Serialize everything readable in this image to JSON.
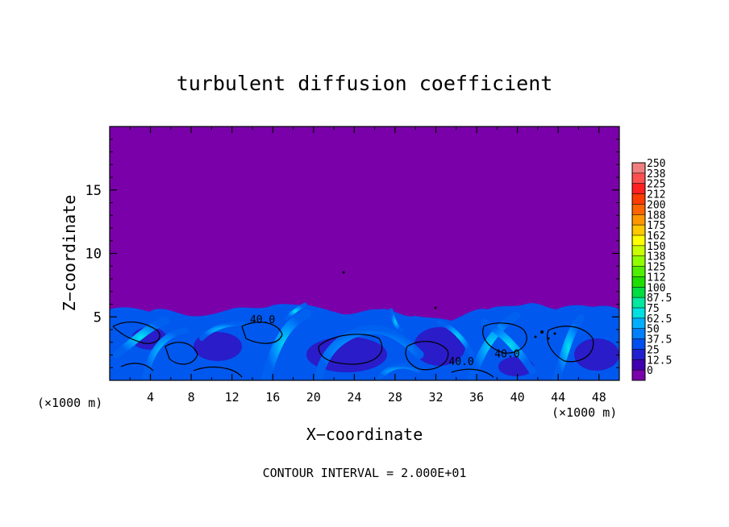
{
  "chart_data": {
    "type": "heatmap",
    "title": "turbulent diffusion coefficient",
    "xlabel": "X−coordinate",
    "ylabel": "Z−coordinate",
    "x_unit_left": "(×1000 m)",
    "x_unit_right": "(×1000 m)",
    "footer": "CONTOUR INTERVAL = 2.000E+01",
    "xlim": [
      0,
      50
    ],
    "ylim": [
      0,
      20
    ],
    "x_ticks": [
      "4",
      "8",
      "12",
      "16",
      "20",
      "24",
      "28",
      "32",
      "36",
      "40",
      "44",
      "48"
    ],
    "x_tick_values": [
      4,
      8,
      12,
      16,
      20,
      24,
      28,
      32,
      36,
      40,
      44,
      48
    ],
    "y_ticks": [
      "5",
      "10",
      "15"
    ],
    "y_tick_values": [
      5,
      10,
      15
    ],
    "contour_labels": [
      {
        "text": "40.0",
        "x": 15.0,
        "z": 4.5
      },
      {
        "text": "40.0",
        "x": 34.5,
        "z": 1.2
      },
      {
        "text": "40.0",
        "x": 39.0,
        "z": 1.8
      }
    ],
    "colorbar": {
      "labels": [
        "250",
        "238",
        "225",
        "212",
        "200",
        "188",
        "175",
        "162",
        "150",
        "138",
        "125",
        "112",
        "100",
        "87.5",
        "75",
        "62.5",
        "50",
        "37.5",
        "25",
        "12.5",
        "0"
      ],
      "values": [
        250,
        237.5,
        225,
        212.5,
        200,
        187.5,
        175,
        162.5,
        150,
        137.5,
        125,
        112.5,
        100,
        87.5,
        75,
        62.5,
        50,
        37.5,
        25,
        12.5,
        0
      ],
      "colors": [
        "#f08080",
        "#ff5050",
        "#ff2020",
        "#ff3c00",
        "#ff6400",
        "#ff9600",
        "#ffc800",
        "#ffff00",
        "#c8ff00",
        "#90ff00",
        "#50ee00",
        "#20dd00",
        "#00dd40",
        "#00e8a0",
        "#00e0e0",
        "#00b0ff",
        "#0080ff",
        "#0050f0",
        "#2020d0",
        "#4000b0",
        "#7a00aa"
      ]
    },
    "background_color": "#7a00aa",
    "boundary_layer_top_km": 6,
    "field_summary": "Turbulent diffusion coefficient is near 0 above about z = 6 km and reaches 20–75 in a convective boundary layer below about 6 km, with plume-like structures; contour interval 20."
  }
}
